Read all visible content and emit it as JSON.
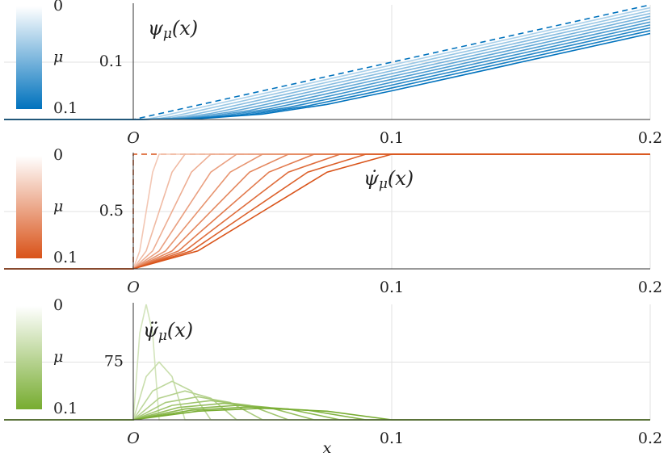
{
  "chart_data": [
    {
      "type": "line",
      "color": "#0072bd",
      "label": {
        "base": "ψ",
        "sub": "μ",
        "arg": "(x)"
      },
      "xlim": [
        -0.05,
        0.2
      ],
      "xticks": [
        {
          "value": 0,
          "label": "O"
        },
        0.1,
        0.2
      ],
      "ylim": [
        0,
        0.2
      ],
      "yticks": [
        0.1
      ],
      "grid": true,
      "colorbar": {
        "lim": [
          0,
          0.1
        ],
        "ticks": [
          0,
          0.1
        ],
        "label": "μ"
      },
      "series": [
        {
          "mu": 0,
          "dashed": true,
          "x": [
            -0.05,
            0,
            0.2
          ],
          "values": [
            0,
            0,
            0.2
          ]
        },
        {
          "mu": 0.01,
          "x": [
            -0.05,
            0,
            0.0025,
            0.005,
            0.0075,
            0.01,
            0.2
          ],
          "values": [
            0,
            0,
            0.00014,
            0.00094,
            0.00264,
            0.005,
            0.195
          ]
        },
        {
          "mu": 0.02,
          "x": [
            -0.05,
            0,
            0.005,
            0.01,
            0.015,
            0.02,
            0.2
          ],
          "values": [
            0,
            0,
            0.00027,
            0.00188,
            0.00527,
            0.01,
            0.19
          ]
        },
        {
          "mu": 0.03,
          "x": [
            -0.05,
            0,
            0.0075,
            0.015,
            0.0225,
            0.03,
            0.2
          ],
          "values": [
            0,
            0,
            0.00041,
            0.00281,
            0.00791,
            0.015,
            0.185
          ]
        },
        {
          "mu": 0.04,
          "x": [
            -0.05,
            0,
            0.01,
            0.02,
            0.03,
            0.04,
            0.2
          ],
          "values": [
            0,
            0,
            0.00055,
            0.00375,
            0.01055,
            0.02,
            0.18
          ]
        },
        {
          "mu": 0.05,
          "x": [
            -0.05,
            0,
            0.0125,
            0.025,
            0.0375,
            0.05,
            0.2
          ],
          "values": [
            0,
            0,
            0.00068,
            0.00469,
            0.01318,
            0.025,
            0.175
          ]
        },
        {
          "mu": 0.06,
          "x": [
            -0.05,
            0,
            0.015,
            0.03,
            0.045,
            0.06,
            0.2
          ],
          "values": [
            0,
            0,
            0.00082,
            0.00563,
            0.01582,
            0.03,
            0.17
          ]
        },
        {
          "mu": 0.07,
          "x": [
            -0.05,
            0,
            0.0175,
            0.035,
            0.0525,
            0.07,
            0.2
          ],
          "values": [
            0,
            0,
            0.00096,
            0.00656,
            0.01846,
            0.035,
            0.165
          ]
        },
        {
          "mu": 0.08,
          "x": [
            -0.05,
            0,
            0.02,
            0.04,
            0.06,
            0.08,
            0.2
          ],
          "values": [
            0,
            0,
            0.00109,
            0.0075,
            0.02109,
            0.04,
            0.16
          ]
        },
        {
          "mu": 0.09,
          "x": [
            -0.05,
            0,
            0.0225,
            0.045,
            0.0675,
            0.09,
            0.2
          ],
          "values": [
            0,
            0,
            0.00123,
            0.00844,
            0.02373,
            0.045,
            0.155
          ]
        },
        {
          "mu": 0.1,
          "x": [
            -0.05,
            0,
            0.025,
            0.05,
            0.075,
            0.1,
            0.2
          ],
          "values": [
            0,
            0,
            0.00137,
            0.00938,
            0.02637,
            0.05,
            0.15
          ]
        }
      ]
    },
    {
      "type": "line",
      "color": "#d95319",
      "label": {
        "base": "ψ̇",
        "sub": "μ",
        "arg": "(x)"
      },
      "xlim": [
        -0.05,
        0.2
      ],
      "xticks": [
        {
          "value": 0,
          "label": "O"
        },
        0.1,
        0.2
      ],
      "ylim": [
        0,
        1
      ],
      "yticks": [
        0.5
      ],
      "grid": true,
      "colorbar": {
        "lim": [
          0,
          0.1
        ],
        "ticks": [
          0,
          0.1
        ],
        "label": "μ"
      },
      "series": [
        {
          "mu": 0,
          "dashed": true,
          "x": [
            -0.05,
            0,
            0,
            0.2
          ],
          "values": [
            0,
            0,
            1,
            1
          ]
        },
        {
          "mu": 0.01,
          "x": [
            -0.05,
            0,
            0.0025,
            0.005,
            0.0075,
            0.01,
            0.2
          ],
          "values": [
            0,
            0,
            0.15625,
            0.5,
            0.84375,
            1,
            1
          ]
        },
        {
          "mu": 0.02,
          "x": [
            -0.05,
            0,
            0.005,
            0.01,
            0.015,
            0.02,
            0.2
          ],
          "values": [
            0,
            0,
            0.15625,
            0.5,
            0.84375,
            1,
            1
          ]
        },
        {
          "mu": 0.03,
          "x": [
            -0.05,
            0,
            0.0075,
            0.015,
            0.0225,
            0.03,
            0.2
          ],
          "values": [
            0,
            0,
            0.15625,
            0.5,
            0.84375,
            1,
            1
          ]
        },
        {
          "mu": 0.04,
          "x": [
            -0.05,
            0,
            0.01,
            0.02,
            0.03,
            0.04,
            0.2
          ],
          "values": [
            0,
            0,
            0.15625,
            0.5,
            0.84375,
            1,
            1
          ]
        },
        {
          "mu": 0.05,
          "x": [
            -0.05,
            0,
            0.0125,
            0.025,
            0.0375,
            0.05,
            0.2
          ],
          "values": [
            0,
            0,
            0.15625,
            0.5,
            0.84375,
            1,
            1
          ]
        },
        {
          "mu": 0.06,
          "x": [
            -0.05,
            0,
            0.015,
            0.03,
            0.045,
            0.06,
            0.2
          ],
          "values": [
            0,
            0,
            0.15625,
            0.5,
            0.84375,
            1,
            1
          ]
        },
        {
          "mu": 0.07,
          "x": [
            -0.05,
            0,
            0.0175,
            0.035,
            0.0525,
            0.07,
            0.2
          ],
          "values": [
            0,
            0,
            0.15625,
            0.5,
            0.84375,
            1,
            1
          ]
        },
        {
          "mu": 0.08,
          "x": [
            -0.05,
            0,
            0.02,
            0.04,
            0.06,
            0.08,
            0.2
          ],
          "values": [
            0,
            0,
            0.15625,
            0.5,
            0.84375,
            1,
            1
          ]
        },
        {
          "mu": 0.09,
          "x": [
            -0.05,
            0,
            0.0225,
            0.045,
            0.0675,
            0.09,
            0.2
          ],
          "values": [
            0,
            0,
            0.15625,
            0.5,
            0.84375,
            1,
            1
          ]
        },
        {
          "mu": 0.1,
          "x": [
            -0.05,
            0,
            0.025,
            0.05,
            0.075,
            0.1,
            0.2
          ],
          "values": [
            0,
            0,
            0.15625,
            0.5,
            0.84375,
            1,
            1
          ]
        }
      ]
    },
    {
      "type": "line",
      "color": "#77ac30",
      "label": {
        "base": "ψ̈",
        "sub": "μ",
        "arg": "(x)"
      },
      "xlim": [
        -0.05,
        0.2
      ],
      "xticks": [
        {
          "value": 0,
          "label": "O"
        },
        0.1,
        0.2
      ],
      "ylim": [
        0,
        150
      ],
      "yticks": [
        75
      ],
      "grid": true,
      "xlabel": "x",
      "colorbar": {
        "lim": [
          0,
          0.1
        ],
        "ticks": [
          0,
          0.1
        ],
        "label": "μ"
      },
      "series": [
        {
          "mu": 0.01,
          "x": [
            -0.05,
            0,
            0.0025,
            0.005,
            0.0075,
            0.01,
            0.2
          ],
          "values": [
            0,
            0,
            112.5,
            150,
            112.5,
            0,
            0
          ]
        },
        {
          "mu": 0.02,
          "x": [
            -0.05,
            0,
            0.005,
            0.01,
            0.015,
            0.02,
            0.2
          ],
          "values": [
            0,
            0,
            56.25,
            75,
            56.25,
            0,
            0
          ]
        },
        {
          "mu": 0.03,
          "x": [
            -0.05,
            0,
            0.0075,
            0.015,
            0.0225,
            0.03,
            0.2
          ],
          "values": [
            0,
            0,
            37.5,
            50,
            37.5,
            0,
            0
          ]
        },
        {
          "mu": 0.04,
          "x": [
            -0.05,
            0,
            0.01,
            0.02,
            0.03,
            0.04,
            0.2
          ],
          "values": [
            0,
            0,
            28.125,
            37.5,
            28.125,
            0,
            0
          ]
        },
        {
          "mu": 0.05,
          "x": [
            -0.05,
            0,
            0.0125,
            0.025,
            0.0375,
            0.05,
            0.2
          ],
          "values": [
            0,
            0,
            22.5,
            30,
            22.5,
            0,
            0
          ]
        },
        {
          "mu": 0.06,
          "x": [
            -0.05,
            0,
            0.015,
            0.03,
            0.045,
            0.06,
            0.2
          ],
          "values": [
            0,
            0,
            18.75,
            25,
            18.75,
            0,
            0
          ]
        },
        {
          "mu": 0.07,
          "x": [
            -0.05,
            0,
            0.0175,
            0.035,
            0.0525,
            0.07,
            0.2
          ],
          "values": [
            0,
            0,
            16.071,
            21.429,
            16.071,
            0,
            0
          ]
        },
        {
          "mu": 0.08,
          "x": [
            -0.05,
            0,
            0.02,
            0.04,
            0.06,
            0.08,
            0.2
          ],
          "values": [
            0,
            0,
            14.063,
            18.75,
            14.063,
            0,
            0
          ]
        },
        {
          "mu": 0.09,
          "x": [
            -0.05,
            0,
            0.0225,
            0.045,
            0.0675,
            0.09,
            0.2
          ],
          "values": [
            0,
            0,
            12.5,
            16.667,
            12.5,
            0,
            0
          ]
        },
        {
          "mu": 0.1,
          "x": [
            -0.05,
            0,
            0.025,
            0.05,
            0.075,
            0.1,
            0.2
          ],
          "values": [
            0,
            0,
            11.25,
            15,
            11.25,
            0,
            0
          ]
        }
      ]
    }
  ]
}
